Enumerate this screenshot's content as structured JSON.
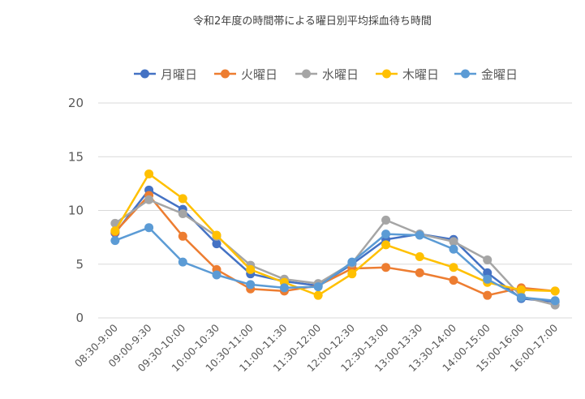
{
  "chart_data": {
    "type": "line",
    "title": "令和2年度の時間帯による曜日別平均採血待ち時間",
    "xlabel": "",
    "ylabel": "",
    "ylim": [
      0,
      20
    ],
    "yticks": [
      0,
      5,
      10,
      15,
      20
    ],
    "grid": true,
    "legend_position": "top",
    "categories": [
      "08:30-9:00",
      "09:00-9:30",
      "09:30-10:00",
      "10:00-10:30",
      "10:30-11:00",
      "11:00-11:30",
      "11:30-12:00",
      "12:00-12:30",
      "12:30-13:00",
      "13:00-13:30",
      "13:30-14:00",
      "14:00-15:00",
      "15:00-16:00",
      "16:00-17:00"
    ],
    "series": [
      {
        "name": "月曜日",
        "color": "#4472c4",
        "values": [
          7.9,
          11.9,
          10.1,
          6.9,
          4.1,
          3.4,
          3.0,
          5.0,
          7.3,
          7.8,
          7.3,
          4.2,
          1.8,
          1.5
        ]
      },
      {
        "name": "火曜日",
        "color": "#ed7d31",
        "values": [
          8.0,
          11.4,
          7.6,
          4.5,
          2.7,
          2.5,
          3.0,
          4.6,
          4.7,
          4.2,
          3.5,
          2.1,
          2.8,
          2.5
        ]
      },
      {
        "name": "水曜日",
        "color": "#a5a5a5",
        "values": [
          8.8,
          11.0,
          9.7,
          7.6,
          4.9,
          3.6,
          3.2,
          5.1,
          9.1,
          7.8,
          7.1,
          5.4,
          2.0,
          1.2
        ]
      },
      {
        "name": "木曜日",
        "color": "#ffc000",
        "values": [
          8.1,
          13.4,
          11.1,
          7.7,
          4.5,
          3.3,
          2.1,
          4.1,
          6.8,
          5.7,
          4.7,
          3.3,
          2.6,
          2.5
        ]
      },
      {
        "name": "金曜日",
        "color": "#5b9bd5",
        "values": [
          7.2,
          8.4,
          5.2,
          4.0,
          3.1,
          2.8,
          2.9,
          5.2,
          7.8,
          7.7,
          6.4,
          3.6,
          1.9,
          1.6
        ]
      }
    ]
  }
}
